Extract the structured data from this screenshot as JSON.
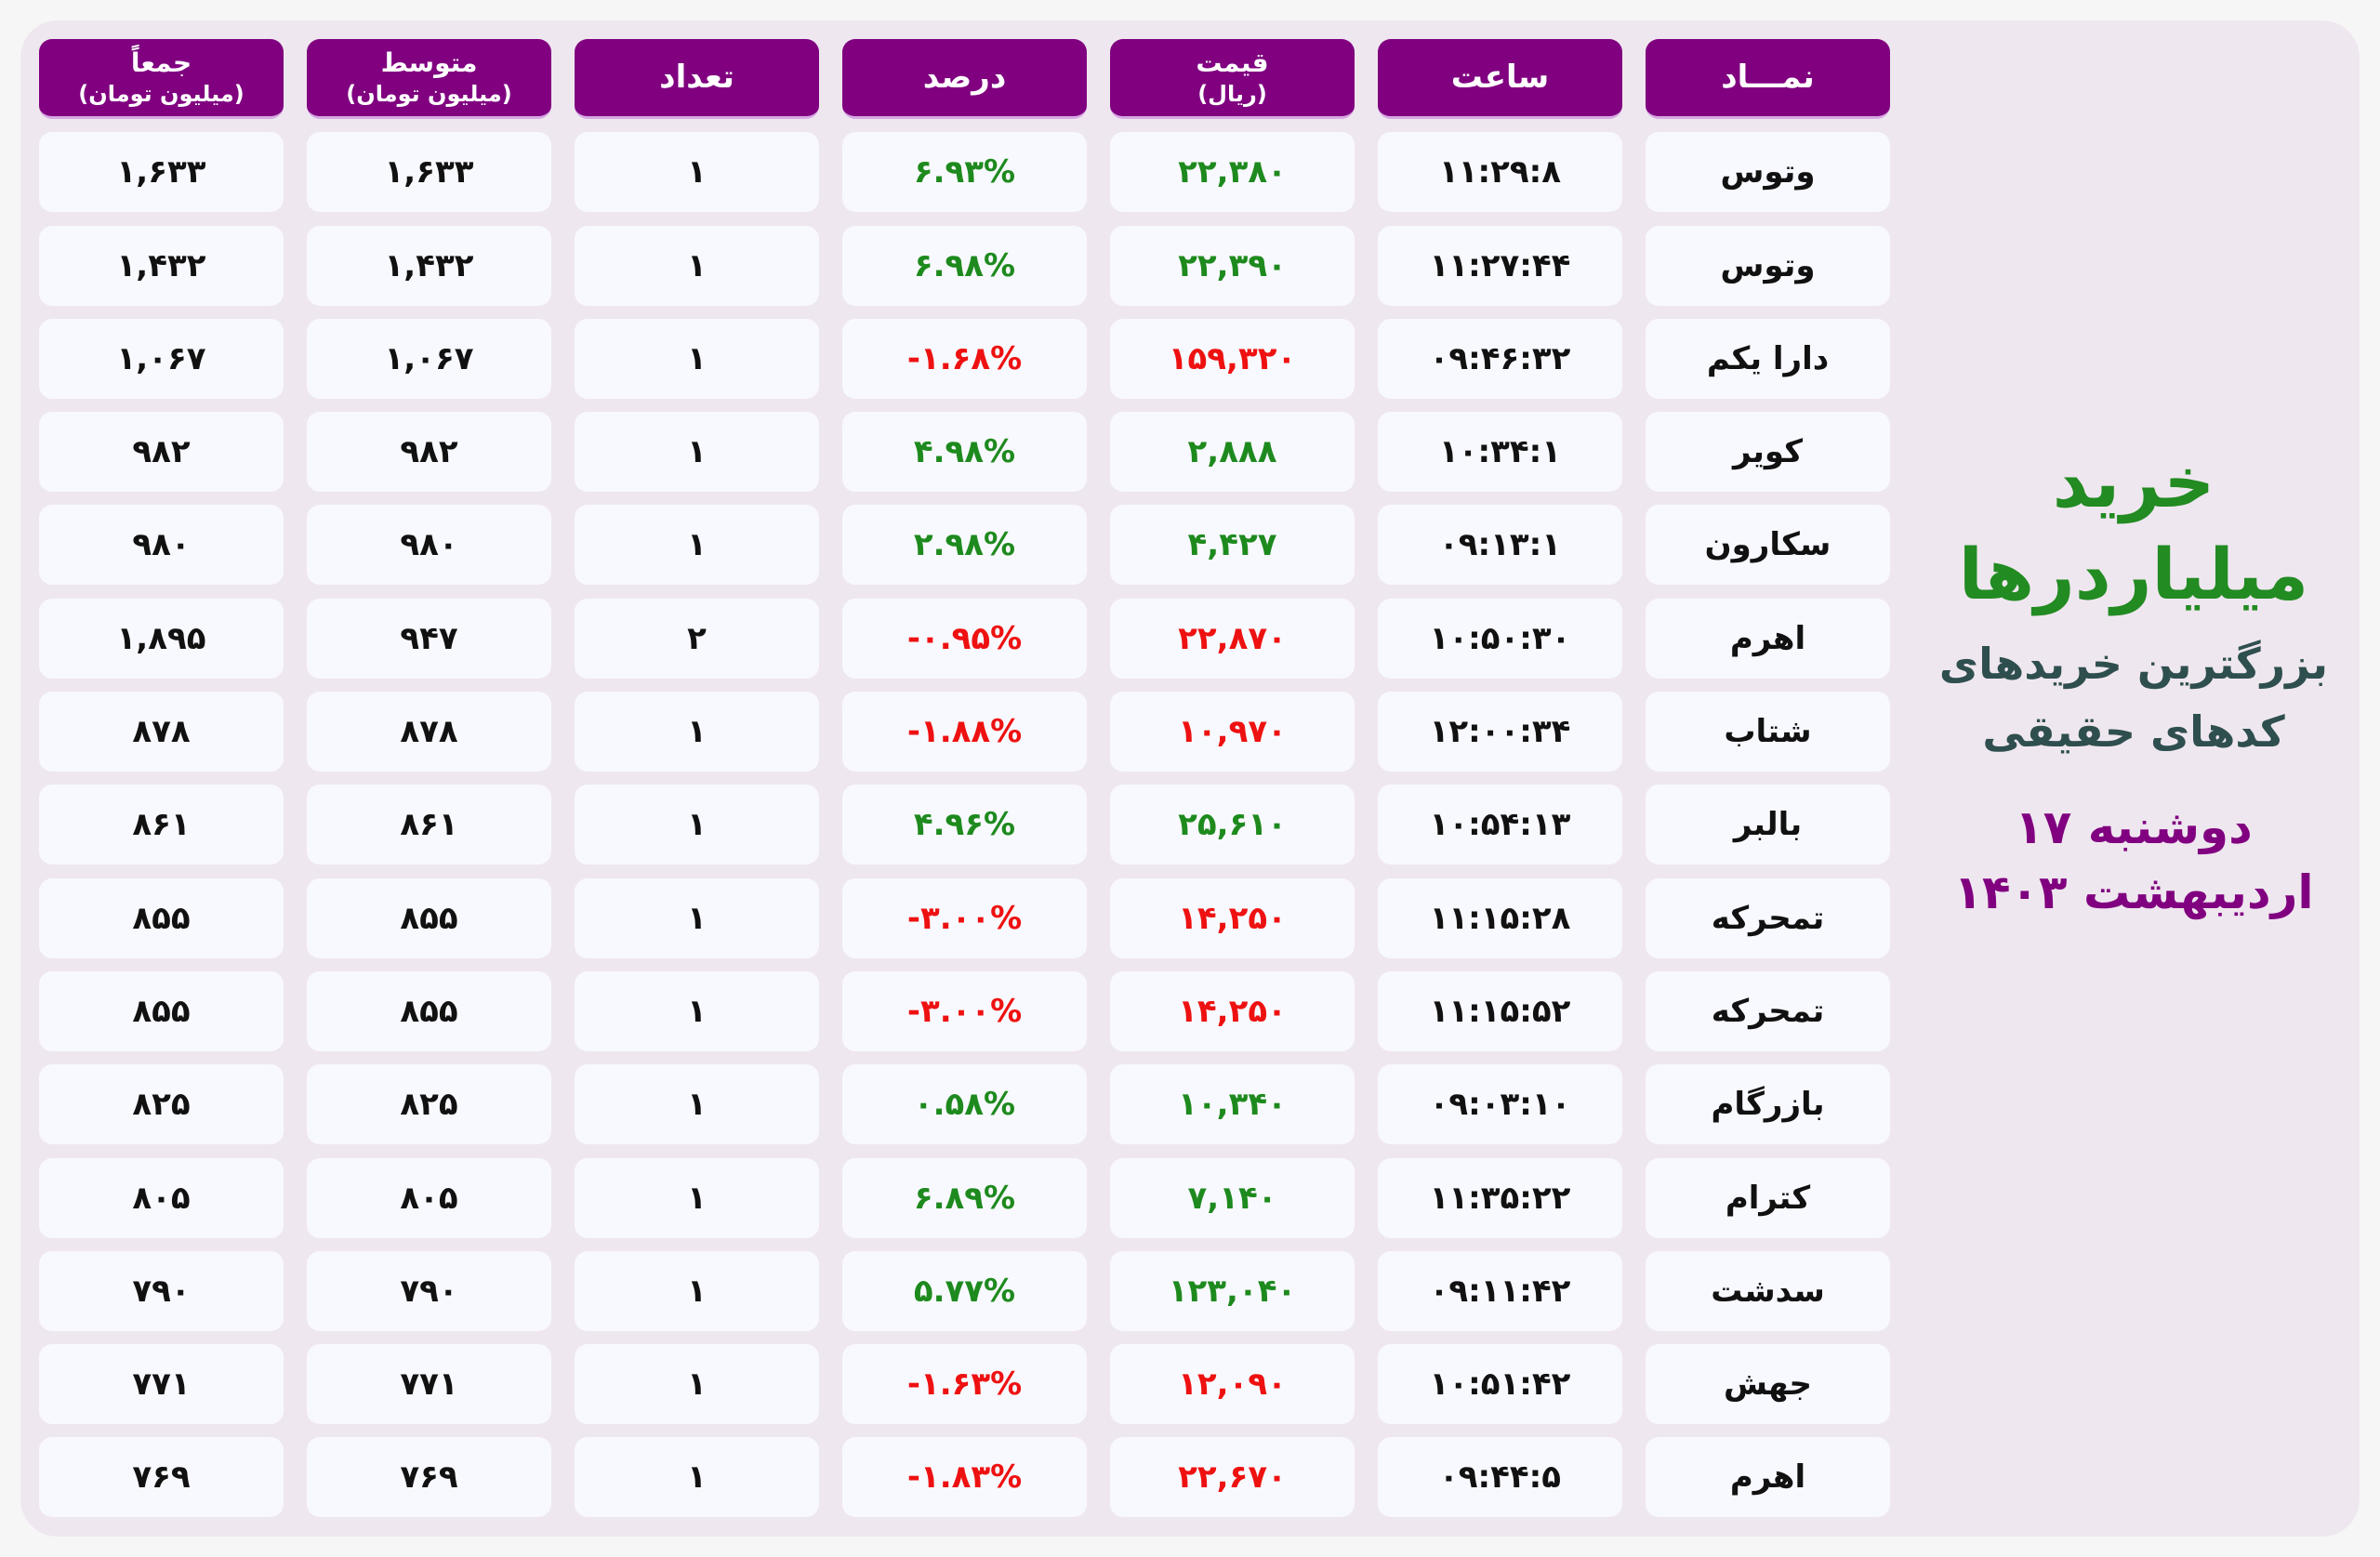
{
  "side": {
    "title": "خرید میلیاردرها",
    "subtitle_line1": "بزرگترین خریدهای",
    "subtitle_line2": "کدهای حقیقی",
    "date": "دوشنبه ۱۷ اردیبهشت ۱۴۰۳"
  },
  "colors": {
    "header": "#800080",
    "positive": "#228b22",
    "negative": "#ff0000",
    "title": "#228b22",
    "subtitle": "#2f4f4f",
    "date": "#800080"
  },
  "columns": [
    {
      "key": "symbol",
      "label": "نمـــاد",
      "sub": ""
    },
    {
      "key": "time",
      "label": "ساعت",
      "sub": ""
    },
    {
      "key": "price",
      "label": "قیمت",
      "sub": "(ریال)"
    },
    {
      "key": "percent",
      "label": "درصد",
      "sub": ""
    },
    {
      "key": "count",
      "label": "تعداد",
      "sub": ""
    },
    {
      "key": "average",
      "label": "متوسط",
      "sub": "(میلیون تومان)"
    },
    {
      "key": "total",
      "label": "جمعاً",
      "sub": "(میلیون تومان)"
    }
  ],
  "rows": [
    {
      "symbol": "وتوس",
      "time": "۱۱:۲۹:۸",
      "price": "۲۲,۳۸۰",
      "percent": "۶.۹۳%",
      "trend": "up",
      "count": "۱",
      "average": "۱,۶۳۳",
      "total": "۱,۶۳۳"
    },
    {
      "symbol": "وتوس",
      "time": "۱۱:۲۷:۴۴",
      "price": "۲۲,۳۹۰",
      "percent": "۶.۹۸%",
      "trend": "up",
      "count": "۱",
      "average": "۱,۴۳۲",
      "total": "۱,۴۳۲"
    },
    {
      "symbol": "دارا یکم",
      "time": "۰۹:۴۶:۳۲",
      "price": "۱۵۹,۳۲۰",
      "percent": "-۱.۶۸%",
      "trend": "down",
      "count": "۱",
      "average": "۱,۰۶۷",
      "total": "۱,۰۶۷"
    },
    {
      "symbol": "کویر",
      "time": "۱۰:۳۴:۱",
      "price": "۲,۸۸۸",
      "percent": "۴.۹۸%",
      "trend": "up",
      "count": "۱",
      "average": "۹۸۲",
      "total": "۹۸۲"
    },
    {
      "symbol": "سکارون",
      "time": "۰۹:۱۳:۱",
      "price": "۴,۴۲۷",
      "percent": "۲.۹۸%",
      "trend": "up",
      "count": "۱",
      "average": "۹۸۰",
      "total": "۹۸۰"
    },
    {
      "symbol": "اهرم",
      "time": "۱۰:۵۰:۳۰",
      "price": "۲۲,۸۷۰",
      "percent": "-۰.۹۵%",
      "trend": "down",
      "count": "۲",
      "average": "۹۴۷",
      "total": "۱,۸۹۵"
    },
    {
      "symbol": "شتاب",
      "time": "۱۲:۰۰:۳۴",
      "price": "۱۰,۹۷۰",
      "percent": "-۱.۸۸%",
      "trend": "down",
      "count": "۱",
      "average": "۸۷۸",
      "total": "۸۷۸"
    },
    {
      "symbol": "بالبر",
      "time": "۱۰:۵۴:۱۳",
      "price": "۲۵,۶۱۰",
      "percent": "۴.۹۶%",
      "trend": "up",
      "count": "۱",
      "average": "۸۶۱",
      "total": "۸۶۱"
    },
    {
      "symbol": "تمحرکه",
      "time": "۱۱:۱۵:۲۸",
      "price": "۱۴,۲۵۰",
      "percent": "-۳.۰۰%",
      "trend": "down",
      "count": "۱",
      "average": "۸۵۵",
      "total": "۸۵۵"
    },
    {
      "symbol": "تمحرکه",
      "time": "۱۱:۱۵:۵۲",
      "price": "۱۴,۲۵۰",
      "percent": "-۳.۰۰%",
      "trend": "down",
      "count": "۱",
      "average": "۸۵۵",
      "total": "۸۵۵"
    },
    {
      "symbol": "بازرگام",
      "time": "۰۹:۰۳:۱۰",
      "price": "۱۰,۳۴۰",
      "percent": "۰.۵۸%",
      "trend": "up",
      "count": "۱",
      "average": "۸۲۵",
      "total": "۸۲۵"
    },
    {
      "symbol": "کترام",
      "time": "۱۱:۳۵:۲۲",
      "price": "۷,۱۴۰",
      "percent": "۶.۸۹%",
      "trend": "up",
      "count": "۱",
      "average": "۸۰۵",
      "total": "۸۰۵"
    },
    {
      "symbol": "سدشت",
      "time": "۰۹:۱۱:۴۲",
      "price": "۱۲۳,۰۴۰",
      "percent": "۵.۷۷%",
      "trend": "up",
      "count": "۱",
      "average": "۷۹۰",
      "total": "۷۹۰"
    },
    {
      "symbol": "جهش",
      "time": "۱۰:۵۱:۴۲",
      "price": "۱۲,۰۹۰",
      "percent": "-۱.۶۳%",
      "trend": "down",
      "count": "۱",
      "average": "۷۷۱",
      "total": "۷۷۱"
    },
    {
      "symbol": "اهرم",
      "time": "۰۹:۴۴:۵",
      "price": "۲۲,۶۷۰",
      "percent": "-۱.۸۳%",
      "trend": "down",
      "count": "۱",
      "average": "۷۶۹",
      "total": "۷۶۹"
    }
  ]
}
